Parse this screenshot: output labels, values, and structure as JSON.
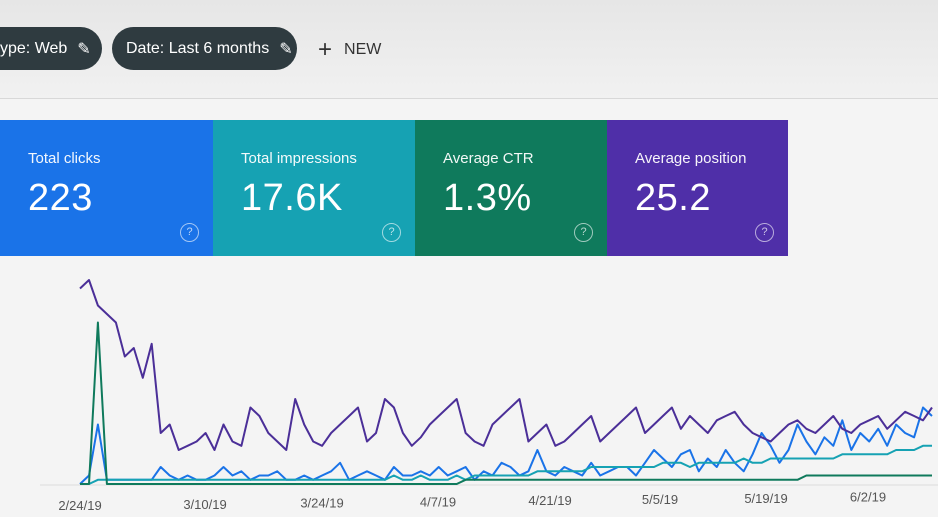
{
  "filters": {
    "type_chip": "ype: Web",
    "date_chip": "Date: Last 6 months",
    "new_label": "NEW"
  },
  "metrics": [
    {
      "label": "Total clicks",
      "value": "223",
      "color": "#1a73e8"
    },
    {
      "label": "Total impressions",
      "value": "17.6K",
      "color": "#16a2b3"
    },
    {
      "label": "Average CTR",
      "value": "1.3%",
      "color": "#0f7a5c"
    },
    {
      "label": "Average position",
      "value": "25.2",
      "color": "#4f2fa8"
    }
  ],
  "chart_data": {
    "type": "line",
    "x_tick_labels": [
      "2/24/19",
      "3/10/19",
      "3/24/19",
      "4/7/19",
      "4/21/19",
      "5/5/19",
      "5/19/19",
      "6/2/19"
    ],
    "series": [
      {
        "color": "#1a73e8",
        "values": [
          0,
          2,
          14,
          1,
          1,
          1,
          1,
          1,
          1,
          4,
          2,
          1,
          2,
          1,
          1,
          2,
          4,
          2,
          3,
          1,
          2,
          2,
          3,
          1,
          1,
          2,
          1,
          2,
          3,
          5,
          1,
          2,
          3,
          2,
          1,
          4,
          2,
          2,
          3,
          2,
          4,
          2,
          3,
          4,
          1,
          3,
          2,
          5,
          4,
          2,
          3,
          8,
          3,
          2,
          4,
          3,
          2,
          5,
          2,
          3,
          4,
          4,
          2,
          5,
          8,
          6,
          4,
          7,
          8,
          3,
          6,
          4,
          8,
          5,
          3,
          7,
          12,
          9,
          5,
          8,
          14,
          10,
          7,
          11,
          9,
          15,
          8,
          12,
          10,
          13,
          9,
          14,
          12,
          11,
          18,
          16
        ]
      },
      {
        "color": "#16a2b3",
        "values": [
          0,
          0,
          1,
          1,
          1,
          1,
          1,
          1,
          1,
          1,
          1,
          1,
          1,
          1,
          1,
          1,
          1,
          1,
          1,
          1,
          1,
          1,
          1,
          1,
          1,
          1,
          1,
          1,
          1,
          1,
          1,
          1,
          1,
          1,
          1,
          2,
          1,
          1,
          2,
          1,
          1,
          1,
          2,
          1,
          2,
          2,
          2,
          2,
          2,
          2,
          2,
          3,
          3,
          3,
          3,
          3,
          3,
          4,
          4,
          4,
          4,
          4,
          4,
          4,
          4,
          5,
          5,
          5,
          4,
          5,
          5,
          5,
          5,
          5,
          6,
          5,
          5,
          6,
          6,
          6,
          6,
          6,
          6,
          6,
          6,
          7,
          7,
          7,
          7,
          7,
          7,
          8,
          8,
          8,
          9,
          9
        ]
      },
      {
        "color": "#0f7a5c",
        "values": [
          0,
          0,
          38,
          0,
          0,
          0,
          0,
          0,
          0,
          0,
          0,
          0,
          0,
          0,
          0,
          0,
          0,
          0,
          0,
          0,
          0,
          0,
          0,
          0,
          0,
          0,
          0,
          0,
          0,
          0,
          0,
          0,
          0,
          0,
          0,
          0,
          0,
          0,
          0,
          0,
          0,
          0,
          0,
          1,
          1,
          1,
          1,
          1,
          1,
          1,
          1,
          1,
          1,
          1,
          1,
          1,
          1,
          1,
          1,
          1,
          1,
          1,
          1,
          1,
          1,
          1,
          1,
          1,
          1,
          1,
          1,
          1,
          1,
          1,
          1,
          1,
          1,
          1,
          1,
          1,
          1,
          2,
          2,
          2,
          2,
          2,
          2,
          2,
          2,
          2,
          2,
          2,
          2,
          2,
          2,
          2
        ]
      },
      {
        "color": "#4b2f98",
        "values": [
          46,
          48,
          42,
          40,
          38,
          30,
          32,
          25,
          33,
          12,
          14,
          8,
          9,
          10,
          12,
          8,
          14,
          10,
          9,
          18,
          16,
          12,
          10,
          8,
          20,
          14,
          10,
          9,
          12,
          14,
          16,
          18,
          10,
          12,
          20,
          18,
          12,
          9,
          11,
          14,
          16,
          18,
          20,
          12,
          10,
          9,
          14,
          16,
          18,
          20,
          10,
          12,
          14,
          9,
          10,
          12,
          14,
          16,
          10,
          12,
          14,
          16,
          18,
          12,
          14,
          16,
          18,
          13,
          16,
          14,
          12,
          15,
          16,
          17,
          14,
          12,
          11,
          10,
          12,
          14,
          15,
          13,
          12,
          14,
          16,
          13,
          12,
          14,
          15,
          16,
          13,
          15,
          17,
          16,
          15,
          18
        ]
      }
    ]
  }
}
